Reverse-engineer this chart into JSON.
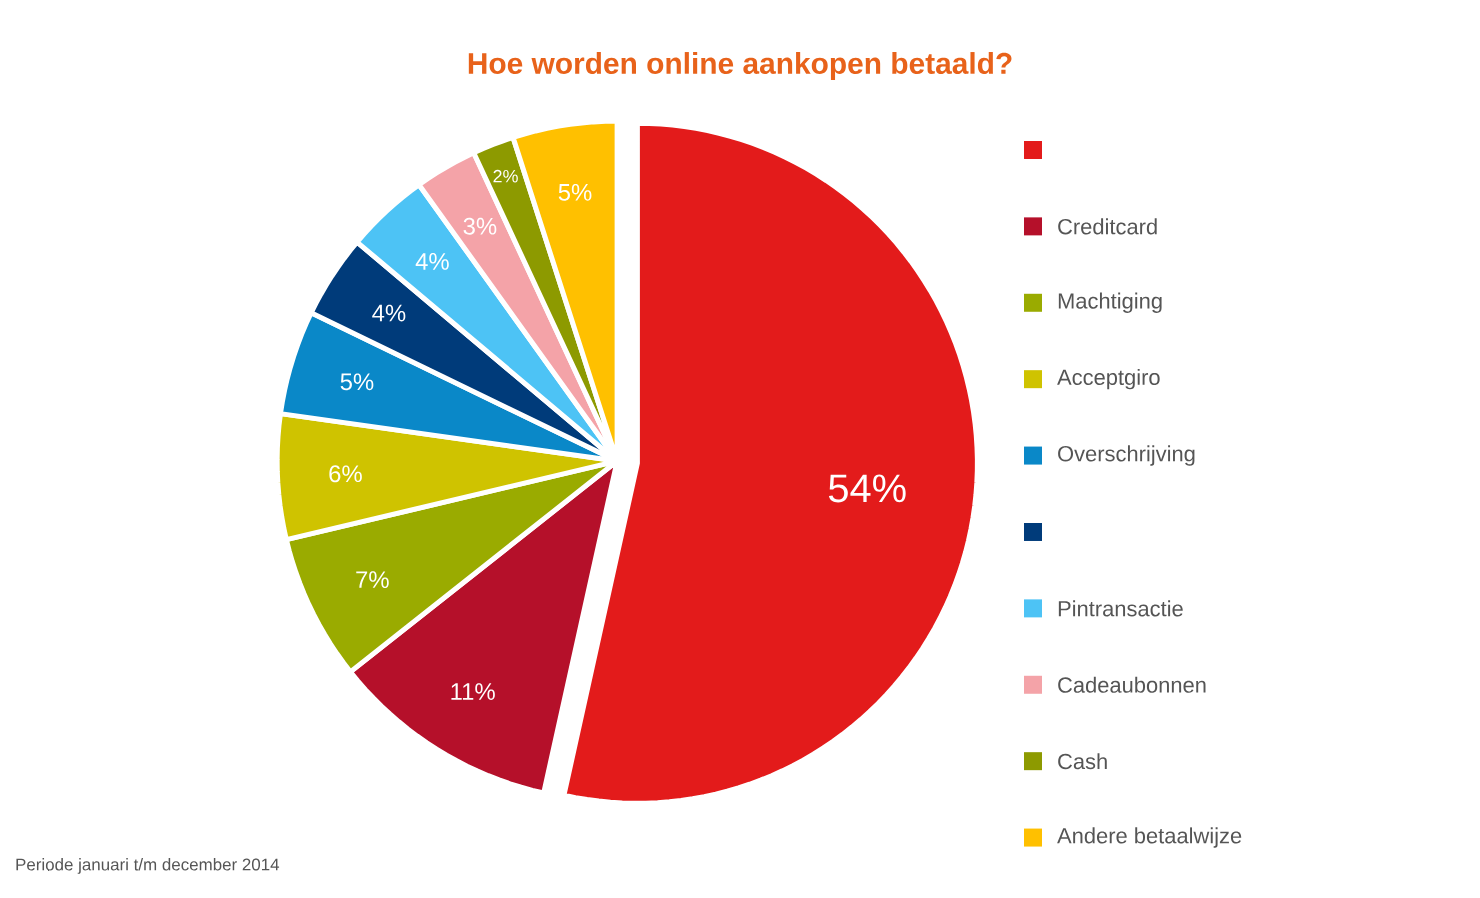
{
  "chart_data": {
    "type": "pie",
    "title": "Hoe worden online aankopen betaald?",
    "categories": [
      null,
      "Creditcard",
      "Machtiging",
      "Acceptgiro",
      "Overschrijving",
      null,
      "Pintransactie",
      "Cadeaubonnen",
      "Cash",
      "Andere betaalwijze"
    ],
    "values": [
      54,
      11,
      7,
      6,
      5,
      4,
      4,
      3,
      2,
      5
    ],
    "colors": [
      "#e31b1b",
      "#b5102a",
      "#9aab00",
      "#cfc300",
      "#0a88c8",
      "#003b7a",
      "#4dc3f5",
      "#f4a3a8",
      "#8d9a00",
      "#ffc000"
    ],
    "value_labels": [
      "54%",
      "11%",
      "7%",
      "6%",
      "5%",
      "4%",
      "4%",
      "3%",
      "2%",
      "5%"
    ],
    "legend": "right",
    "annotations": [
      "Periode januari t/m december 2014"
    ]
  }
}
